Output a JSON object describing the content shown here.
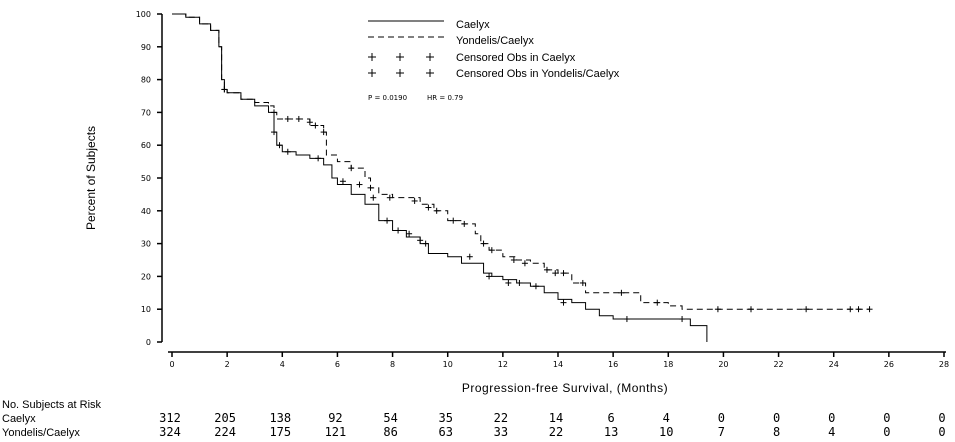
{
  "chart_data": {
    "type": "line",
    "ylabel": "Percent of Subjects",
    "xlabel": "Progression-free Survival, (Months)",
    "xlim": [
      0,
      28
    ],
    "ylim": [
      0,
      100
    ],
    "x_ticks": [
      0,
      2,
      4,
      6,
      8,
      10,
      12,
      14,
      16,
      18,
      20,
      22,
      24,
      26,
      28
    ],
    "y_ticks": [
      0,
      10,
      20,
      30,
      40,
      50,
      60,
      70,
      80,
      90,
      100
    ],
    "legend": {
      "position": "top-right",
      "entries": [
        {
          "label": "Caelyx",
          "style": "solid"
        },
        {
          "label": "Yondelis/Caelyx",
          "style": "dashed"
        },
        {
          "label": "Censored Obs in Caelyx",
          "marker": "+"
        },
        {
          "label": "Censored Obs in Yondelis/Caelyx",
          "marker": "+"
        }
      ]
    },
    "stats": {
      "p_text": "P = 0.0190",
      "hr_text": "HR = 0.79"
    },
    "grid": false,
    "series": [
      {
        "name": "Caelyx",
        "style": "solid",
        "x": [
          0,
          0.5,
          1.0,
          1.4,
          1.7,
          1.8,
          1.9,
          2.0,
          2.5,
          3.0,
          3.5,
          3.7,
          3.8,
          4.0,
          4.5,
          5.0,
          5.5,
          5.8,
          6.0,
          6.5,
          7.0,
          7.5,
          8.0,
          8.5,
          9.0,
          9.3,
          9.6,
          10.0,
          10.5,
          11.0,
          11.3,
          11.6,
          12.0,
          12.5,
          13.0,
          13.5,
          14.0,
          14.5,
          15.0,
          15.5,
          16.0,
          17.0,
          18.0,
          18.8,
          19.3,
          19.4
        ],
        "y": [
          100,
          99,
          97,
          95,
          90,
          80,
          77,
          76,
          74,
          72,
          70,
          64,
          60,
          58,
          57,
          56,
          54,
          50,
          48,
          45,
          42,
          37,
          34,
          32,
          30,
          27,
          27,
          26,
          24,
          24,
          21,
          20,
          19,
          18,
          17,
          15,
          13,
          12,
          10,
          8,
          7,
          7,
          7,
          5,
          5,
          0
        ]
      },
      {
        "name": "Yondelis/Caelyx",
        "style": "dashed",
        "x": [
          0,
          0.5,
          1.0,
          1.4,
          1.7,
          1.8,
          1.9,
          2.0,
          2.5,
          3.0,
          3.5,
          3.7,
          3.8,
          4.0,
          5.0,
          5.5,
          5.6,
          6.0,
          6.5,
          7.0,
          7.2,
          7.5,
          8.0,
          8.5,
          9.0,
          9.5,
          10.0,
          10.5,
          11.0,
          11.2,
          11.5,
          12.0,
          12.5,
          13.0,
          13.5,
          14.0,
          14.5,
          15.0,
          16.0,
          17.0,
          18.0,
          18.5,
          20.0,
          22.0,
          24.0,
          25.3
        ],
        "y": [
          100,
          99,
          97,
          95,
          90,
          80,
          77,
          76,
          74,
          73,
          72,
          70,
          68,
          68,
          66,
          64,
          57,
          55,
          53,
          50,
          47,
          45,
          44,
          44,
          42,
          40,
          37,
          36,
          33,
          30,
          28,
          26,
          25,
          24,
          22,
          21,
          18,
          15,
          15,
          12,
          11,
          10,
          10,
          10,
          10,
          10
        ]
      }
    ],
    "censored": [
      {
        "series": "Caelyx",
        "x": [
          1.9,
          3.7,
          3.9,
          4.2,
          5.3,
          6.2,
          6.8,
          7.3,
          7.8,
          8.2,
          8.6,
          9.0,
          9.2,
          10.8,
          11.5,
          12.2,
          12.6,
          13.2,
          14.2,
          16.5,
          18.5
        ],
        "y": [
          77,
          64,
          60,
          58,
          56,
          49,
          48,
          44,
          37,
          34,
          33,
          31,
          30,
          26,
          20,
          18,
          18,
          17,
          12,
          7,
          7
        ]
      },
      {
        "series": "Yondelis/Caelyx",
        "x": [
          1.9,
          3.7,
          4.2,
          4.6,
          5.0,
          5.2,
          5.5,
          6.5,
          7.2,
          7.9,
          8.8,
          9.3,
          9.6,
          10.2,
          10.6,
          11.3,
          11.6,
          12.4,
          12.8,
          13.6,
          13.9,
          14.2,
          14.9,
          16.3,
          17.6,
          19.8,
          21.0,
          23.0,
          24.6,
          24.9,
          25.3
        ],
        "y": [
          77,
          70,
          68,
          68,
          67,
          66,
          64,
          53,
          47,
          44,
          43,
          41,
          40,
          37,
          36,
          30,
          28,
          25,
          24,
          22,
          21,
          21,
          18,
          15,
          12,
          10,
          10,
          10,
          10,
          10,
          10
        ]
      }
    ]
  },
  "risk_table": {
    "header": "No. Subjects at Risk",
    "rows": [
      {
        "label": "Caelyx",
        "values": [
          "312",
          "205",
          "138",
          "92",
          "54",
          "35",
          "22",
          "14",
          "6",
          "4",
          "0",
          "0",
          "0",
          "0",
          "0"
        ]
      },
      {
        "label": "Yondelis/Caelyx",
        "values": [
          "324",
          "224",
          "175",
          "121",
          "86",
          "63",
          "33",
          "22",
          "13",
          "10",
          "7",
          "8",
          "4",
          "0",
          "0"
        ]
      }
    ]
  }
}
